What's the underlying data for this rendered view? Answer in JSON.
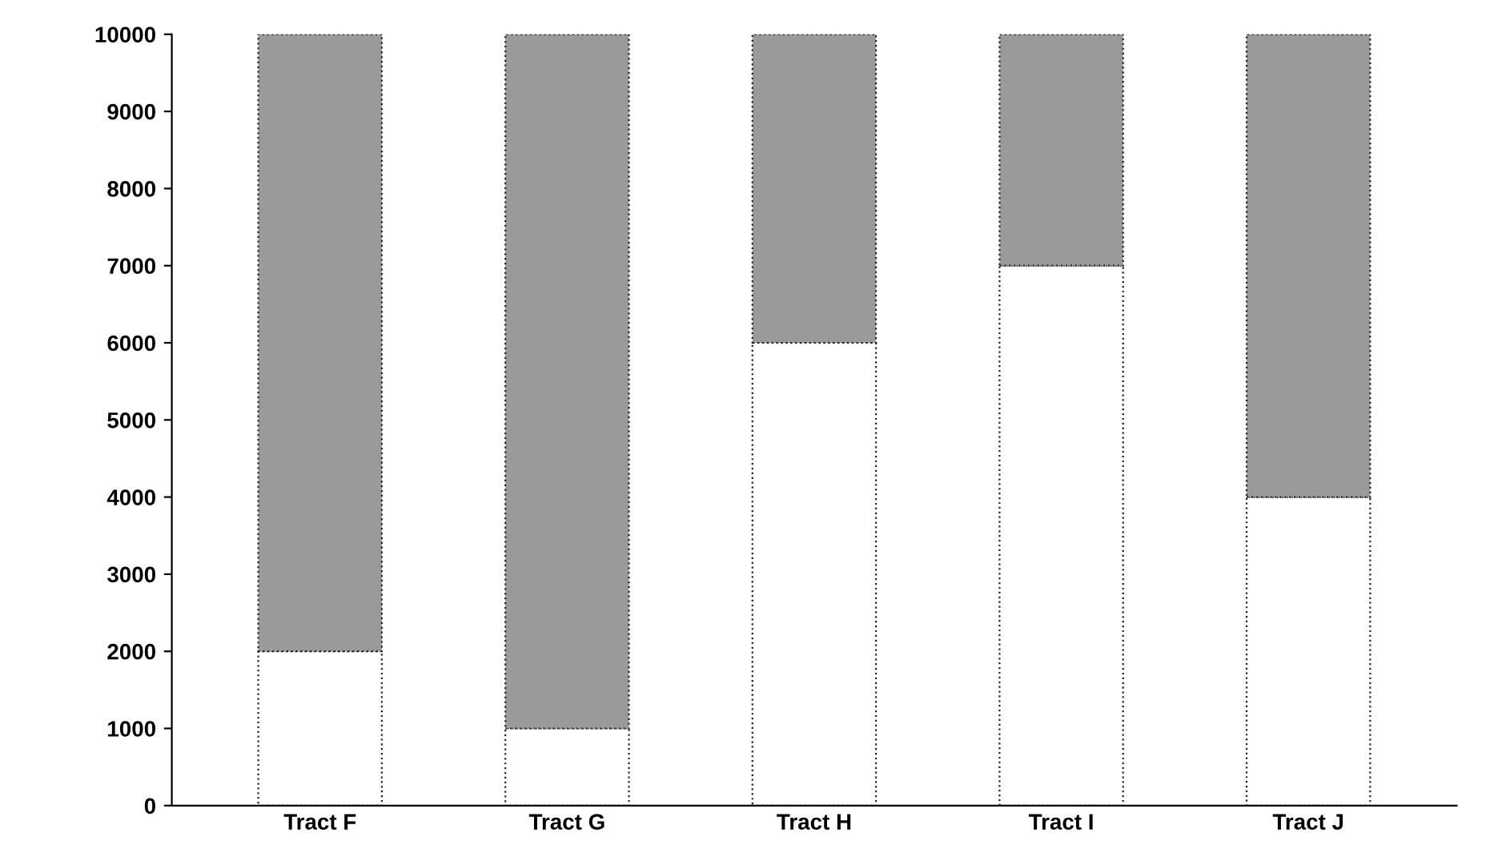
{
  "chart_data": {
    "type": "bar",
    "stacked": true,
    "categories": [
      "Tract F",
      "Tract G",
      "Tract H",
      "Tract I",
      "Tract J"
    ],
    "series": [
      {
        "color": "#ffffff",
        "values": [
          2000,
          1000,
          6000,
          7000,
          4000
        ]
      },
      {
        "color": "#9a9a9a",
        "values": [
          8000,
          9000,
          4000,
          3000,
          6000
        ]
      }
    ],
    "ylim": [
      0,
      10000
    ],
    "yticks": [
      0,
      1000,
      2000,
      3000,
      4000,
      5000,
      6000,
      7000,
      8000,
      9000,
      10000
    ],
    "grid": false,
    "legend": false
  }
}
